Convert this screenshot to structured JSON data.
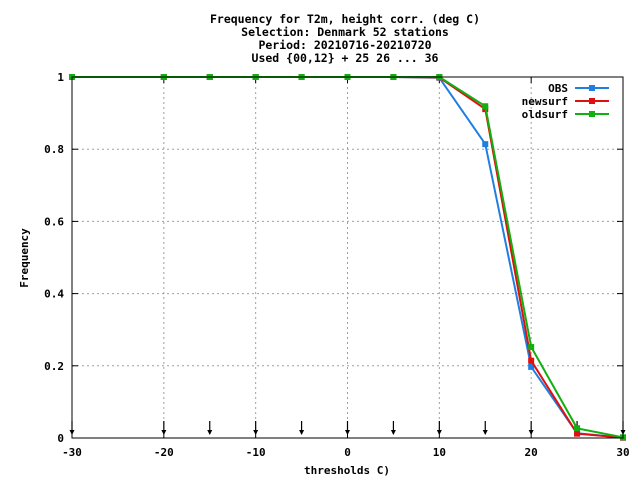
{
  "chart_data": {
    "type": "line",
    "title_lines": [
      "Frequency  for T2m, height corr. (deg C)",
      "Selection: Denmark     52 stations",
      "Period: 20210716-20210720",
      "Used {00,12} + 25 26 ... 36"
    ],
    "xlabel": "thresholds C)",
    "ylabel": "Frequency",
    "xlim": [
      -30,
      30
    ],
    "ylim": [
      0,
      1
    ],
    "xticks": [
      -30,
      -20,
      -10,
      0,
      10,
      20,
      30
    ],
    "yticks": [
      0,
      0.2,
      0.4,
      0.6,
      0.8,
      1
    ],
    "ytick_labels": [
      "0",
      "0.2",
      "0.4",
      "0.6",
      "0.8",
      "1"
    ],
    "grid": true,
    "legend_position": "top-right",
    "x": [
      -30,
      -20,
      -15,
      -10,
      -5,
      0,
      5,
      10,
      15,
      20,
      25,
      30
    ],
    "threshold_markers": [
      -30,
      -20,
      -15,
      -10,
      -5,
      0,
      5,
      10,
      15,
      20,
      25,
      30
    ],
    "series": [
      {
        "name": "OBS",
        "color": "#1f7fe0",
        "values": [
          1,
          1,
          1,
          1,
          1,
          1,
          1,
          0.998,
          0.814,
          0.197,
          0.013,
          0.001
        ]
      },
      {
        "name": "newsurf",
        "color": "#e01010",
        "values": [
          1,
          1,
          1,
          1,
          1,
          1,
          1,
          0.999,
          0.911,
          0.214,
          0.012,
          0.001
        ]
      },
      {
        "name": "oldsurf",
        "color": "#10b010",
        "values": [
          1,
          1,
          1,
          1,
          1,
          1,
          1,
          1,
          0.919,
          0.252,
          0.027,
          0.002
        ]
      }
    ]
  }
}
